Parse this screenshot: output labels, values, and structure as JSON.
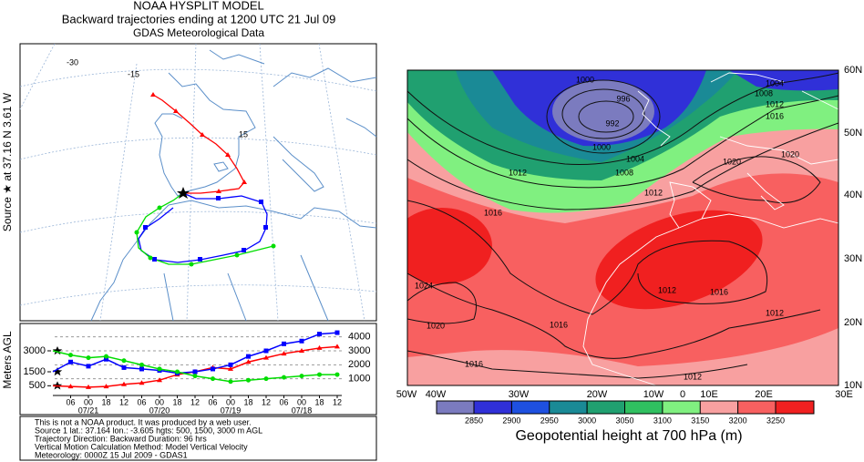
{
  "left_panel": {
    "title": [
      "NOAA HYSPLIT MODEL",
      "Backward trajectories ending at 1200 UTC 21 Jul 09",
      "GDAS Meteorological Data"
    ],
    "source_label": "Source ★ at  37.16 N   3.61 W",
    "map_labels": [
      "-30",
      "-15",
      "15"
    ],
    "height_profile": {
      "type": "line",
      "ylabel": "Meters AGL",
      "x_tick_labels": [
        "06",
        "00",
        "18",
        "12",
        "06",
        "00",
        "18",
        "12",
        "06",
        "00",
        "18",
        "12",
        "06",
        "00",
        "18",
        "12"
      ],
      "date_labels": [
        "07/21",
        "07/20",
        "07/19",
        "07/18"
      ],
      "ylim": [
        0,
        4500
      ],
      "yticks_left": [
        3000,
        1500,
        500
      ],
      "yticks_right": [
        4000,
        3000,
        2000,
        1000
      ],
      "series": [
        {
          "color": "#ff0000",
          "values": [
            500,
            450,
            400,
            450,
            600,
            700,
            900,
            1300,
            1500,
            1800,
            1700,
            2200,
            2500,
            2800,
            3000,
            3200,
            3300
          ]
        },
        {
          "color": "#0000ff",
          "values": [
            1500,
            2200,
            1900,
            2400,
            1800,
            1700,
            1600,
            1400,
            1500,
            1700,
            2000,
            2600,
            3000,
            3500,
            3700,
            4200,
            4300
          ]
        },
        {
          "color": "#00dd00",
          "values": [
            3000,
            2700,
            2500,
            2600,
            2300,
            2000,
            1700,
            1500,
            1200,
            1000,
            800,
            900,
            1000,
            1100,
            1200,
            1300,
            1300
          ]
        }
      ]
    },
    "info": [
      "This is not a NOAA product. It was produced by a web user.",
      "Source 1 lat.: 37.164  lon.: -3.605  hgts: 500, 1500, 3000 m AGL",
      "Trajectory Direction: Backward     Duration: 96 hrs",
      "Vertical Motion Calculation Method:        Model Vertical Velocity",
      "Meteorology: 0000Z 15 Jul 2009 - GDAS1"
    ]
  },
  "right_panel": {
    "lat_labels": [
      "60N",
      "50N",
      "40N",
      "30N",
      "20N",
      "10N"
    ],
    "lon_labels": [
      "50W",
      "40W",
      "30W",
      "20W",
      "10W",
      "0",
      "10E",
      "20E",
      "30E"
    ],
    "contour_labels": [
      "1000",
      "996",
      "992",
      "1000",
      "1004",
      "1012",
      "1008",
      "1012",
      "1004",
      "1008",
      "1012",
      "1016",
      "1020",
      "1020",
      "1016",
      "1024",
      "1012",
      "1016",
      "1012",
      "1016",
      "1020",
      "1016",
      "1012"
    ],
    "colorbar": {
      "ticks": [
        2850,
        2900,
        2950,
        3000,
        3050,
        3100,
        3150,
        3200,
        3250
      ],
      "colors": [
        "#7b7bbf",
        "#3030d8",
        "#1e50e0",
        "#1a8a96",
        "#20a070",
        "#30c060",
        "#80f080",
        "#f8a0a0",
        "#f86060",
        "#f02020"
      ],
      "title": "Geopotential height at 700 hPa (m)"
    }
  }
}
